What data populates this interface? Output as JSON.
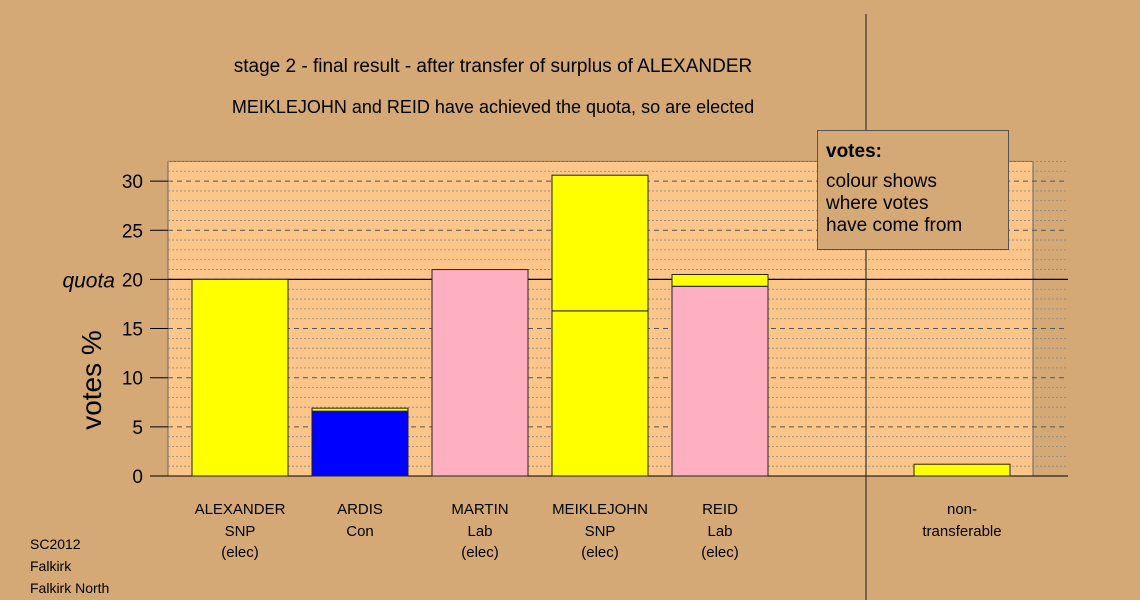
{
  "chart_data": {
    "type": "bar",
    "stacked": true,
    "title": "stage 2 - final result - after transfer of surplus of ALEXANDER",
    "subtitle": "MEIKLEJOHN and REID have achieved the quota, so are elected",
    "ylabel": "votes %",
    "ylim": [
      0,
      32
    ],
    "yticks": [
      0,
      5,
      10,
      15,
      20,
      25,
      30
    ],
    "quota": {
      "value": 20,
      "label": "quota"
    },
    "grid": true,
    "candidates": [
      {
        "line1": "ALEXANDER",
        "line2": "SNP",
        "line3": "(elec)",
        "segments": [
          {
            "value": 20.0,
            "color": "#ffff00"
          }
        ]
      },
      {
        "line1": "ARDIS",
        "line2": "Con",
        "line3": "",
        "segments": [
          {
            "value": 6.6,
            "color": "#0000ff"
          },
          {
            "value": 0.3,
            "color": "#ffff00"
          }
        ]
      },
      {
        "line1": "MARTIN",
        "line2": "Lab",
        "line3": "(elec)",
        "segments": [
          {
            "value": 21.0,
            "color": "#ffb0c0"
          }
        ]
      },
      {
        "line1": "MEIKLEJOHN",
        "line2": "SNP",
        "line3": "(elec)",
        "segments": [
          {
            "value": 16.8,
            "color": "#ffff00"
          },
          {
            "value": 13.8,
            "color": "#ffff00"
          }
        ]
      },
      {
        "line1": "REID",
        "line2": "Lab",
        "line3": "(elec)",
        "segments": [
          {
            "value": 19.3,
            "color": "#ffb0c0"
          },
          {
            "value": 1.2,
            "color": "#ffff00"
          }
        ]
      }
    ],
    "nontransferable": {
      "line1": "non-",
      "line2": "transferable",
      "segments": [
        {
          "value": 1.2,
          "color": "#ffff00"
        }
      ]
    },
    "legend": {
      "title": "votes:",
      "lines": [
        "colour shows",
        "where votes",
        "have come from"
      ],
      "position": "top-right"
    }
  },
  "footer": {
    "line1": "SC2012",
    "line2": "Falkirk",
    "line3": "Falkirk North"
  },
  "colors": {
    "background": "#d4a976",
    "plot_background": "#fcc68a"
  }
}
